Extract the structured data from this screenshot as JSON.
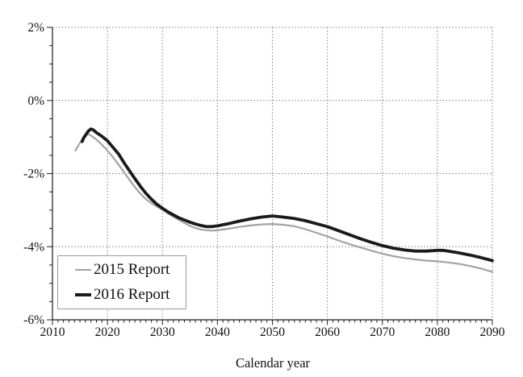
{
  "chart_data": {
    "type": "line",
    "title": "",
    "xlabel": "Calendar year",
    "ylabel": "",
    "x_range": [
      2010,
      2090
    ],
    "y_range": [
      -6,
      2
    ],
    "x_major_ticks": [
      2010,
      2020,
      2030,
      2040,
      2050,
      2060,
      2070,
      2080,
      2090
    ],
    "x_tick_labels": [
      "2010",
      "2020",
      "2030",
      "2040",
      "2050",
      "2060",
      "2070",
      "2080",
      "2090"
    ],
    "x_minor_tick_step": 1,
    "y_major_ticks": [
      2,
      0,
      -2,
      -4,
      -6
    ],
    "y_tick_labels": [
      "2%",
      "0%",
      "-2%",
      "-4%",
      "-6%"
    ],
    "y_minor_tick_step": 0.5,
    "grid": {
      "show": true,
      "color": "#6e6e6e",
      "dash": "1.3 2.6"
    },
    "axis_color": "#1a1a1a",
    "tick_color": "#222222",
    "legend_position": "lower-left",
    "series": [
      {
        "name": "2015 Report",
        "color": "#a3a3a3",
        "stroke_width": 2.2,
        "points": [
          [
            2014.2,
            -1.37
          ],
          [
            2014.6,
            -1.26
          ],
          [
            2015,
            -1.16
          ],
          [
            2015.5,
            -1.04
          ],
          [
            2016,
            -0.95
          ],
          [
            2016.5,
            -0.92
          ],
          [
            2017,
            -0.96
          ],
          [
            2018,
            -1.07
          ],
          [
            2019,
            -1.21
          ],
          [
            2020,
            -1.37
          ],
          [
            2021,
            -1.55
          ],
          [
            2022,
            -1.75
          ],
          [
            2023,
            -1.96
          ],
          [
            2024,
            -2.17
          ],
          [
            2025,
            -2.37
          ],
          [
            2026,
            -2.55
          ],
          [
            2027,
            -2.7
          ],
          [
            2028,
            -2.81
          ],
          [
            2029,
            -2.9
          ],
          [
            2030,
            -2.99
          ],
          [
            2031,
            -3.09
          ],
          [
            2032,
            -3.18
          ],
          [
            2033,
            -3.27
          ],
          [
            2034,
            -3.35
          ],
          [
            2035,
            -3.43
          ],
          [
            2036,
            -3.49
          ],
          [
            2037,
            -3.53
          ],
          [
            2038,
            -3.55
          ],
          [
            2039,
            -3.56
          ],
          [
            2040,
            -3.55
          ],
          [
            2041,
            -3.53
          ],
          [
            2042,
            -3.51
          ],
          [
            2044,
            -3.46
          ],
          [
            2046,
            -3.42
          ],
          [
            2048,
            -3.39
          ],
          [
            2050,
            -3.38
          ],
          [
            2052,
            -3.4
          ],
          [
            2054,
            -3.44
          ],
          [
            2056,
            -3.52
          ],
          [
            2058,
            -3.62
          ],
          [
            2060,
            -3.72
          ],
          [
            2062,
            -3.83
          ],
          [
            2064,
            -3.93
          ],
          [
            2066,
            -4.02
          ],
          [
            2068,
            -4.11
          ],
          [
            2070,
            -4.19
          ],
          [
            2072,
            -4.26
          ],
          [
            2074,
            -4.31
          ],
          [
            2076,
            -4.35
          ],
          [
            2078,
            -4.38
          ],
          [
            2080,
            -4.4
          ],
          [
            2082,
            -4.43
          ],
          [
            2084,
            -4.47
          ],
          [
            2086,
            -4.53
          ],
          [
            2088,
            -4.6
          ],
          [
            2090,
            -4.69
          ]
        ]
      },
      {
        "name": "2016 Report",
        "color": "#1a1a1a",
        "stroke_width": 3.8,
        "points": [
          [
            2015.4,
            -1.12
          ],
          [
            2015.7,
            -1.02
          ],
          [
            2016,
            -0.95
          ],
          [
            2016.5,
            -0.84
          ],
          [
            2017,
            -0.78
          ],
          [
            2017.4,
            -0.8
          ],
          [
            2018,
            -0.88
          ],
          [
            2019,
            -0.98
          ],
          [
            2020,
            -1.1
          ],
          [
            2021,
            -1.28
          ],
          [
            2022,
            -1.46
          ],
          [
            2023,
            -1.7
          ],
          [
            2024,
            -1.92
          ],
          [
            2025,
            -2.14
          ],
          [
            2026,
            -2.35
          ],
          [
            2027,
            -2.54
          ],
          [
            2028,
            -2.7
          ],
          [
            2029,
            -2.84
          ],
          [
            2030,
            -2.95
          ],
          [
            2031,
            -3.05
          ],
          [
            2032,
            -3.13
          ],
          [
            2033,
            -3.21
          ],
          [
            2034,
            -3.27
          ],
          [
            2035,
            -3.33
          ],
          [
            2036,
            -3.38
          ],
          [
            2037,
            -3.42
          ],
          [
            2038,
            -3.45
          ],
          [
            2039,
            -3.45
          ],
          [
            2040,
            -3.43
          ],
          [
            2041,
            -3.4
          ],
          [
            2042,
            -3.37
          ],
          [
            2044,
            -3.3
          ],
          [
            2046,
            -3.24
          ],
          [
            2048,
            -3.19
          ],
          [
            2050,
            -3.16
          ],
          [
            2052,
            -3.19
          ],
          [
            2054,
            -3.23
          ],
          [
            2056,
            -3.29
          ],
          [
            2058,
            -3.37
          ],
          [
            2060,
            -3.45
          ],
          [
            2062,
            -3.56
          ],
          [
            2064,
            -3.67
          ],
          [
            2066,
            -3.78
          ],
          [
            2068,
            -3.88
          ],
          [
            2070,
            -3.97
          ],
          [
            2072,
            -4.04
          ],
          [
            2074,
            -4.09
          ],
          [
            2076,
            -4.12
          ],
          [
            2078,
            -4.12
          ],
          [
            2080,
            -4.1
          ],
          [
            2081,
            -4.1
          ],
          [
            2082,
            -4.12
          ],
          [
            2084,
            -4.17
          ],
          [
            2086,
            -4.23
          ],
          [
            2088,
            -4.3
          ],
          [
            2090,
            -4.38
          ]
        ]
      }
    ]
  }
}
